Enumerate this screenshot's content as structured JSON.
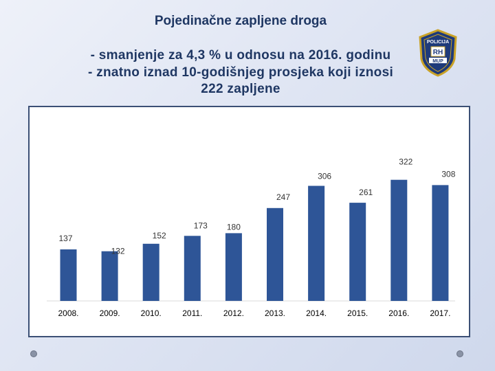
{
  "header": {
    "title": "Pojedinačne zapljene droga",
    "line1": "- smanjenje za 4,3 % u odnosu na 2016. godinu",
    "line2": "- znatno iznad 10-godišnjeg prosjeka koji iznosi",
    "line3": "222 zapljene"
  },
  "badge": {
    "top_text": "POLICIJA",
    "shield_text": "RH",
    "bottom_text": "MUP"
  },
  "colors": {
    "bar": "#2e5597",
    "highlight_label": "#e3000f",
    "title": "#1f3763"
  },
  "chart_data": {
    "type": "bar",
    "categories": [
      "2008.",
      "2009.",
      "2010.",
      "2011.",
      "2012.",
      "2013.",
      "2014.",
      "2015.",
      "2016.",
      "2017."
    ],
    "values": [
      137,
      132,
      152,
      173,
      180,
      247,
      306,
      261,
      322,
      308
    ],
    "title": "",
    "xlabel": "",
    "ylabel": "",
    "ylim": [
      0,
      330
    ],
    "grid": false,
    "highlight_index": 9
  }
}
